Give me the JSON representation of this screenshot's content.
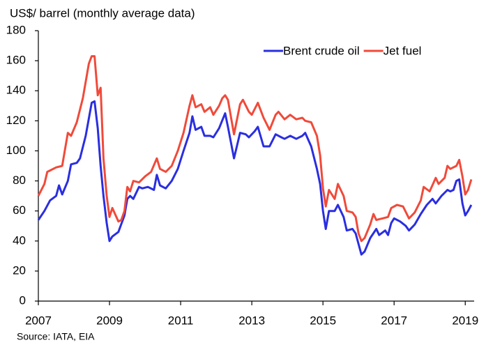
{
  "chart_data": {
    "type": "line",
    "title": "US$/ barrel (monthly average data)",
    "source": "Source: IATA, EIA",
    "xlim": [
      2007,
      2019.25
    ],
    "xticks": [
      2007,
      2009,
      2011,
      2013,
      2015,
      2017,
      2019
    ],
    "ylim": [
      0,
      180
    ],
    "yticks": [
      0,
      20,
      40,
      60,
      80,
      100,
      120,
      140,
      160,
      180
    ],
    "grid": false,
    "legend": "upper right",
    "series": [
      {
        "name": "Brent crude oil",
        "color": "#2a2ee0",
        "x": [
          2007.0,
          2007.17,
          2007.33,
          2007.5,
          2007.58,
          2007.67,
          2007.83,
          2007.92,
          2008.08,
          2008.17,
          2008.33,
          2008.5,
          2008.58,
          2008.67,
          2008.75,
          2008.83,
          2008.92,
          2009.0,
          2009.08,
          2009.25,
          2009.42,
          2009.5,
          2009.58,
          2009.67,
          2009.83,
          2009.92,
          2010.08,
          2010.25,
          2010.33,
          2010.42,
          2010.58,
          2010.75,
          2010.92,
          2011.08,
          2011.25,
          2011.33,
          2011.42,
          2011.58,
          2011.67,
          2011.83,
          2011.92,
          2012.08,
          2012.25,
          2012.33,
          2012.5,
          2012.67,
          2012.83,
          2012.92,
          2013.08,
          2013.17,
          2013.33,
          2013.5,
          2013.67,
          2013.83,
          2013.92,
          2014.08,
          2014.25,
          2014.42,
          2014.5,
          2014.67,
          2014.83,
          2014.92,
          2015.0,
          2015.08,
          2015.17,
          2015.33,
          2015.42,
          2015.58,
          2015.67,
          2015.83,
          2015.92,
          2016.0,
          2016.08,
          2016.17,
          2016.33,
          2016.5,
          2016.58,
          2016.75,
          2016.83,
          2016.92,
          2017.0,
          2017.17,
          2017.33,
          2017.42,
          2017.58,
          2017.75,
          2017.92,
          2018.08,
          2018.17,
          2018.33,
          2018.5,
          2018.58,
          2018.67,
          2018.75,
          2018.83,
          2018.92,
          2019.0,
          2019.08,
          2019.17
        ],
        "values": [
          54,
          60,
          67,
          70,
          77,
          71,
          80,
          91,
          92,
          95,
          110,
          132,
          133,
          115,
          90,
          70,
          52,
          40,
          43,
          46,
          57,
          68,
          70,
          68,
          76,
          75,
          76,
          74,
          84,
          77,
          75,
          80,
          88,
          100,
          112,
          123,
          114,
          116,
          110,
          110,
          109,
          115,
          125,
          116,
          95,
          112,
          111,
          109,
          113,
          116,
          103,
          103,
          111,
          109,
          108,
          110,
          108,
          110,
          112,
          103,
          88,
          78,
          60,
          48,
          60,
          60,
          64,
          56,
          47,
          48,
          45,
          38,
          31,
          33,
          42,
          48,
          44,
          47,
          44,
          52,
          55,
          53,
          50,
          47,
          51,
          58,
          64,
          68,
          65,
          70,
          74,
          73,
          74,
          80,
          81,
          65,
          57,
          60,
          64
        ]
      },
      {
        "name": "Jet fuel",
        "color": "#f04a3a",
        "x": [
          2007.0,
          2007.17,
          2007.25,
          2007.5,
          2007.67,
          2007.83,
          2007.92,
          2008.08,
          2008.25,
          2008.42,
          2008.5,
          2008.58,
          2008.67,
          2008.75,
          2008.83,
          2008.92,
          2009.0,
          2009.08,
          2009.25,
          2009.33,
          2009.42,
          2009.5,
          2009.58,
          2009.67,
          2009.83,
          2010.0,
          2010.17,
          2010.33,
          2010.42,
          2010.58,
          2010.75,
          2010.92,
          2011.08,
          2011.25,
          2011.33,
          2011.42,
          2011.58,
          2011.67,
          2011.83,
          2011.92,
          2012.08,
          2012.17,
          2012.25,
          2012.33,
          2012.5,
          2012.67,
          2012.75,
          2012.92,
          2013.0,
          2013.17,
          2013.33,
          2013.5,
          2013.67,
          2013.75,
          2013.92,
          2014.08,
          2014.25,
          2014.42,
          2014.5,
          2014.67,
          2014.83,
          2014.92,
          2015.0,
          2015.08,
          2015.17,
          2015.33,
          2015.42,
          2015.58,
          2015.67,
          2015.83,
          2015.92,
          2016.0,
          2016.08,
          2016.17,
          2016.33,
          2016.42,
          2016.5,
          2016.67,
          2016.83,
          2016.92,
          2017.08,
          2017.25,
          2017.42,
          2017.58,
          2017.75,
          2017.83,
          2018.0,
          2018.17,
          2018.25,
          2018.42,
          2018.5,
          2018.58,
          2018.75,
          2018.83,
          2018.92,
          2019.0,
          2019.08,
          2019.17
        ],
        "values": [
          70,
          78,
          86,
          89,
          90,
          112,
          110,
          119,
          135,
          158,
          163,
          163,
          137,
          142,
          95,
          70,
          56,
          62,
          53,
          54,
          60,
          76,
          73,
          80,
          79,
          83,
          86,
          95,
          88,
          86,
          90,
          100,
          112,
          130,
          137,
          129,
          131,
          126,
          129,
          124,
          130,
          135,
          137,
          134,
          111,
          131,
          134,
          126,
          124,
          132,
          122,
          114,
          124,
          126,
          121,
          124,
          121,
          122,
          120,
          119,
          110,
          97,
          75,
          63,
          74,
          68,
          78,
          70,
          60,
          59,
          56,
          45,
          40,
          42,
          51,
          58,
          54,
          55,
          56,
          62,
          64,
          63,
          55,
          59,
          67,
          76,
          73,
          82,
          78,
          82,
          90,
          88,
          90,
          94,
          83,
          71,
          74,
          81
        ]
      }
    ]
  }
}
